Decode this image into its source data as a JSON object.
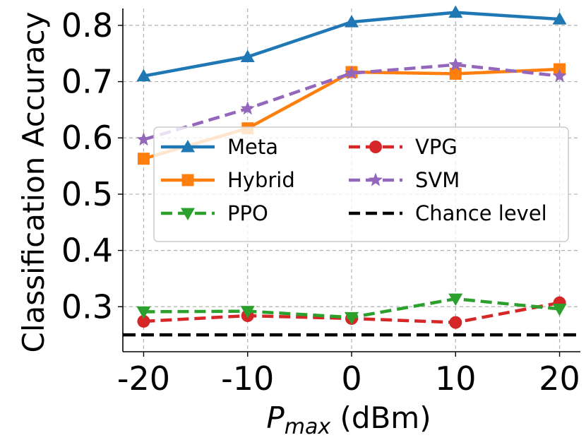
{
  "chart_data": {
    "type": "line",
    "title": "",
    "xlabel_italic": "P",
    "xlabel_sub": "max",
    "xlabel_unit": " (dBm)",
    "ylabel": "Classification Accuracy",
    "x": [
      -20,
      -10,
      0,
      10,
      20
    ],
    "x_tick_labels": [
      "-20",
      "-10",
      "0",
      "10",
      "20"
    ],
    "xlim": [
      -22,
      22
    ],
    "ylim": [
      0.22,
      0.83
    ],
    "y_ticks": [
      0.3,
      0.4,
      0.5,
      0.6,
      0.7,
      0.8
    ],
    "y_tick_labels": [
      "0.3",
      "0.4",
      "0.5",
      "0.6",
      "0.7",
      "0.8"
    ],
    "grid": true,
    "legend_position": "center",
    "series": [
      {
        "name": "Meta",
        "color": "#1f77b4",
        "marker": "triangle-up",
        "linestyle": "solid",
        "values": [
          0.71,
          0.744,
          0.806,
          0.823,
          0.811
        ]
      },
      {
        "name": "VPG",
        "color": "#d62728",
        "marker": "circle",
        "linestyle": "dashed",
        "values": [
          0.274,
          0.284,
          0.279,
          0.272,
          0.307
        ]
      },
      {
        "name": "Hybrid",
        "color": "#ff7f0e",
        "marker": "square",
        "linestyle": "solid",
        "values": [
          0.563,
          0.617,
          0.717,
          0.714,
          0.722
        ]
      },
      {
        "name": "SVM",
        "color": "#9467bd",
        "marker": "star",
        "linestyle": "dashed",
        "values": [
          0.597,
          0.652,
          0.715,
          0.73,
          0.71
        ]
      },
      {
        "name": "PPO",
        "color": "#2ca02c",
        "marker": "triangle-down",
        "linestyle": "dashed",
        "values": [
          0.291,
          0.292,
          0.281,
          0.314,
          0.296
        ]
      },
      {
        "name": "Chance level",
        "color": "#000000",
        "marker": "none",
        "linestyle": "dashed",
        "values": [
          0.25,
          0.25,
          0.25,
          0.25,
          0.25
        ]
      }
    ]
  }
}
